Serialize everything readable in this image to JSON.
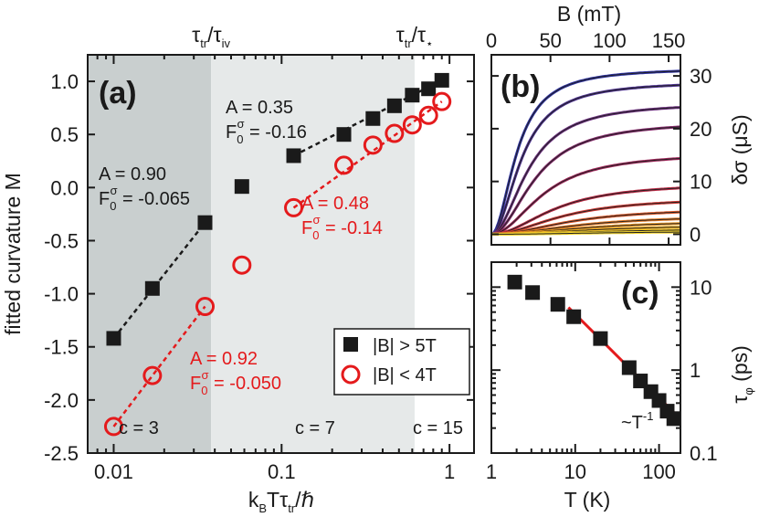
{
  "chart_data": [
    {
      "id": "a",
      "type": "scatter",
      "panel_label": "(a)",
      "xscale": "log",
      "xlim": [
        0.007,
        1.4
      ],
      "ylim": [
        -2.5,
        1.25
      ],
      "xticks": [
        {
          "v": 0.01,
          "label": "0.01"
        },
        {
          "v": 0.1,
          "label": "0.1"
        },
        {
          "v": 1,
          "label": "1"
        }
      ],
      "yticks": [
        {
          "v": 1.0,
          "label": "1.0"
        },
        {
          "v": 0.5,
          "label": "0.5"
        },
        {
          "v": 0.0,
          "label": "0.0"
        },
        {
          "v": -0.5,
          "label": "-0.5"
        },
        {
          "v": -1.0,
          "label": "-1.0"
        },
        {
          "v": -1.5,
          "label": "-1.5"
        },
        {
          "v": -2.0,
          "label": "-2.0"
        },
        {
          "v": -2.5,
          "label": "-2.5"
        }
      ],
      "xlabel": {
        "a": "k",
        "b": "B",
        "c": "Tτ",
        "d": "tr",
        "e": "/ℏ"
      },
      "ylabel": "fitted curvature M",
      "top_labels": [
        {
          "x": 0.038,
          "a": "τ",
          "b": "tr",
          "c": "/τ",
          "d": "iv"
        },
        {
          "x": 0.62,
          "a": "τ",
          "b": "tr",
          "c": "/τ",
          "d": "⋆"
        }
      ],
      "regions": [
        {
          "x0": 0.007,
          "x1": 0.038,
          "color": "#c9cfcf",
          "label": "c = 3"
        },
        {
          "x0": 0.038,
          "x1": 0.62,
          "color": "#e6e9e9",
          "label": "c = 7"
        },
        {
          "x0": 0.62,
          "x1": 1.4,
          "color": "#ffffff",
          "label": "c = 15"
        }
      ],
      "series": [
        {
          "name": "|B| > 5T",
          "color": "#1a1a1a",
          "marker": "square",
          "x": [
            0.01,
            0.017,
            0.035,
            0.058,
            0.118,
            0.235,
            0.35,
            0.47,
            0.6,
            0.75,
            0.9
          ],
          "y": [
            -1.42,
            -0.95,
            -0.33,
            0.01,
            0.3,
            0.5,
            0.65,
            0.77,
            0.87,
            0.93,
            1.01
          ]
        },
        {
          "name": "|B| < 4T",
          "color": "#e41a1c",
          "marker": "circle",
          "x": [
            0.01,
            0.017,
            0.035,
            0.058,
            0.118,
            0.235,
            0.35,
            0.47,
            0.6,
            0.75,
            0.9
          ],
          "y": [
            -2.25,
            -1.77,
            -1.12,
            -0.73,
            -0.19,
            0.21,
            0.4,
            0.51,
            0.59,
            0.68,
            0.81
          ]
        }
      ],
      "fits": [
        {
          "color": "#1a1a1a",
          "x": [
            0.01,
            0.035
          ],
          "y": [
            -1.42,
            -0.33
          ]
        },
        {
          "color": "#1a1a1a",
          "x": [
            0.118,
            0.9
          ],
          "y": [
            0.3,
            1.01
          ]
        },
        {
          "color": "#e41a1c",
          "x": [
            0.01,
            0.035
          ],
          "y": [
            -2.25,
            -1.12
          ]
        },
        {
          "color": "#e41a1c",
          "x": [
            0.118,
            0.9
          ],
          "y": [
            -0.19,
            0.81
          ]
        }
      ],
      "annotations": [
        {
          "color": "black",
          "A": "A = 0.90",
          "F": "F",
          "Fsub": "0",
          "Fsup": "σ",
          "Fval": " = -0.065"
        },
        {
          "color": "black",
          "A": "A = 0.35",
          "F": "F",
          "Fsub": "0",
          "Fsup": "σ",
          "Fval": " = -0.16"
        },
        {
          "color": "red",
          "A": "A = 0.48",
          "F": "F",
          "Fsub": "0",
          "Fsup": "σ",
          "Fval": " = -0.14"
        },
        {
          "color": "red",
          "A": "A = 0.92",
          "F": "F",
          "Fsub": "0",
          "Fsup": "σ",
          "Fval": " = -0.050"
        }
      ]
    },
    {
      "id": "b",
      "type": "line",
      "panel_label": "(b)",
      "xlim": [
        0,
        160
      ],
      "ylim": [
        -2,
        34
      ],
      "xticks": [
        {
          "v": 0,
          "label": "0"
        },
        {
          "v": 50,
          "label": "50"
        },
        {
          "v": 100,
          "label": "100"
        },
        {
          "v": 150,
          "label": "150"
        }
      ],
      "yticks": [
        {
          "v": 0,
          "label": "0"
        },
        {
          "v": 10,
          "label": "10"
        },
        {
          "v": 20,
          "label": "20"
        },
        {
          "v": 30,
          "label": "30"
        }
      ],
      "xlabel": "B (mT)",
      "ylabel": "δσ (μS)",
      "curves": [
        {
          "sat": 31.5,
          "B0": 22,
          "color": "#2b2f9e"
        },
        {
          "sat": 29.0,
          "B0": 26,
          "color": "#4b2f8f"
        },
        {
          "sat": 25.0,
          "B0": 32,
          "color": "#6b2d7e"
        },
        {
          "sat": 21.5,
          "B0": 38,
          "color": "#85296b"
        },
        {
          "sat": 15.5,
          "B0": 45,
          "color": "#a0265a"
        },
        {
          "sat": 9.8,
          "B0": 55,
          "color": "#bb2a45"
        },
        {
          "sat": 7.0,
          "B0": 62,
          "color": "#cf3a35"
        },
        {
          "sat": 5.0,
          "B0": 70,
          "color": "#dc5a2a"
        },
        {
          "sat": 3.6,
          "B0": 78,
          "color": "#e47a24"
        },
        {
          "sat": 2.6,
          "B0": 85,
          "color": "#eb9622"
        },
        {
          "sat": 1.8,
          "B0": 92,
          "color": "#f0b022"
        },
        {
          "sat": 1.1,
          "B0": 100,
          "color": "#f3c628"
        },
        {
          "sat": 0.6,
          "B0": 110,
          "color": "#f5d630"
        }
      ]
    },
    {
      "id": "c",
      "type": "scatter",
      "panel_label": "(c)",
      "xscale": "log",
      "yscale": "log",
      "xlim": [
        1,
        180
      ],
      "ylim": [
        0.1,
        20
      ],
      "xticks": [
        {
          "v": 1,
          "label": "1"
        },
        {
          "v": 10,
          "label": "10"
        },
        {
          "v": 100,
          "label": "100"
        }
      ],
      "yticks": [
        {
          "v": 10,
          "label": "10"
        },
        {
          "v": 1,
          "label": "1"
        },
        {
          "v": 0.1,
          "label": "0.1"
        }
      ],
      "xlabel": "T (K)",
      "ylabel": {
        "a": "τ",
        "b": "φ",
        "c": " (ps)"
      },
      "points": {
        "x": [
          1.9,
          3.1,
          6.2,
          9.6,
          20,
          44,
          60,
          80,
          100,
          125,
          150
        ],
        "y": [
          11.5,
          8.6,
          6.2,
          4.4,
          2.4,
          1.07,
          0.74,
          0.55,
          0.43,
          0.32,
          0.26
        ]
      },
      "fit": {
        "x": [
          8.3,
          160
        ],
        "y": [
          5.7,
          0.29
        ],
        "label": "~T",
        "label_sup": "-1"
      }
    }
  ],
  "legend": {
    "items": [
      {
        "label": "|B| > 5T",
        "marker": "square",
        "color": "#1a1a1a"
      },
      {
        "label": "|B| < 4T",
        "marker": "circle",
        "color": "#e41a1c"
      }
    ]
  }
}
